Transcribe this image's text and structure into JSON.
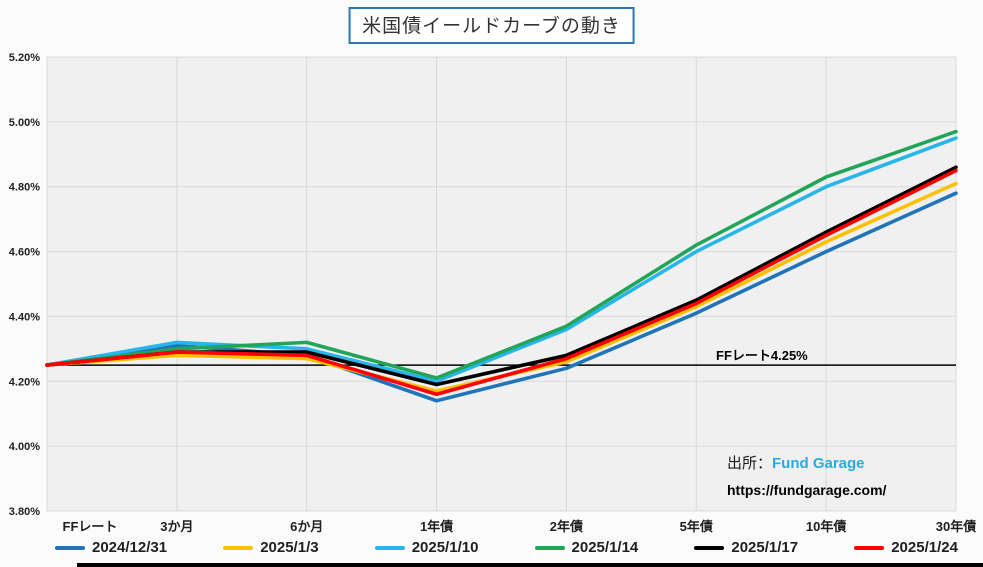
{
  "title": "米国債イールドカーブの動き",
  "colors": {
    "title_border": "#2E75B6",
    "plot_background": "#F0F0F0",
    "gridline": "#D9D9D9",
    "reference_line": "#000000",
    "source_name": "#29ABE2"
  },
  "chart_data": {
    "type": "line",
    "title": "米国債イールドカーブの動き",
    "categories": [
      "FFレート",
      "3か月",
      "6か月",
      "1年債",
      "2年債",
      "5年債",
      "10年債",
      "30年債"
    ],
    "series": [
      {
        "name": "2024/12/31",
        "color": "#2074B7",
        "values": [
          4.25,
          4.31,
          4.28,
          4.14,
          4.24,
          4.41,
          4.6,
          4.78
        ]
      },
      {
        "name": "2025/1/3",
        "color": "#FFC000",
        "values": [
          4.25,
          4.28,
          4.27,
          4.17,
          4.26,
          4.43,
          4.63,
          4.81
        ]
      },
      {
        "name": "2025/1/10",
        "color": "#29B5EC",
        "values": [
          4.25,
          4.32,
          4.3,
          4.2,
          4.36,
          4.6,
          4.8,
          4.95
        ]
      },
      {
        "name": "2025/1/14",
        "color": "#22A559",
        "values": [
          4.25,
          4.3,
          4.32,
          4.21,
          4.37,
          4.62,
          4.83,
          4.97
        ]
      },
      {
        "name": "2025/1/17",
        "color": "#000000",
        "values": [
          4.25,
          4.29,
          4.29,
          4.19,
          4.28,
          4.45,
          4.66,
          4.86
        ]
      },
      {
        "name": "2025/1/24",
        "color": "#FF0000",
        "values": [
          4.25,
          4.29,
          4.28,
          4.16,
          4.27,
          4.44,
          4.65,
          4.85
        ]
      }
    ],
    "xlabel": "",
    "ylabel": "",
    "ylim": [
      3.8,
      5.2
    ],
    "y_ticks": [
      5.2,
      5.0,
      4.8,
      4.6,
      4.4,
      4.2,
      4.0,
      3.8
    ],
    "y_tick_labels": [
      "5.20%",
      "5.00%",
      "4.80%",
      "4.60%",
      "4.40%",
      "4.20%",
      "4.00%",
      "3.80%"
    ],
    "grid": true,
    "legend_position": "bottom",
    "reference_line": {
      "label": "FFレート4.25%",
      "value": 4.25
    }
  },
  "source": {
    "prefix": "出所：",
    "name": "Fund Garage",
    "url": "https://fundgarage.com/"
  }
}
